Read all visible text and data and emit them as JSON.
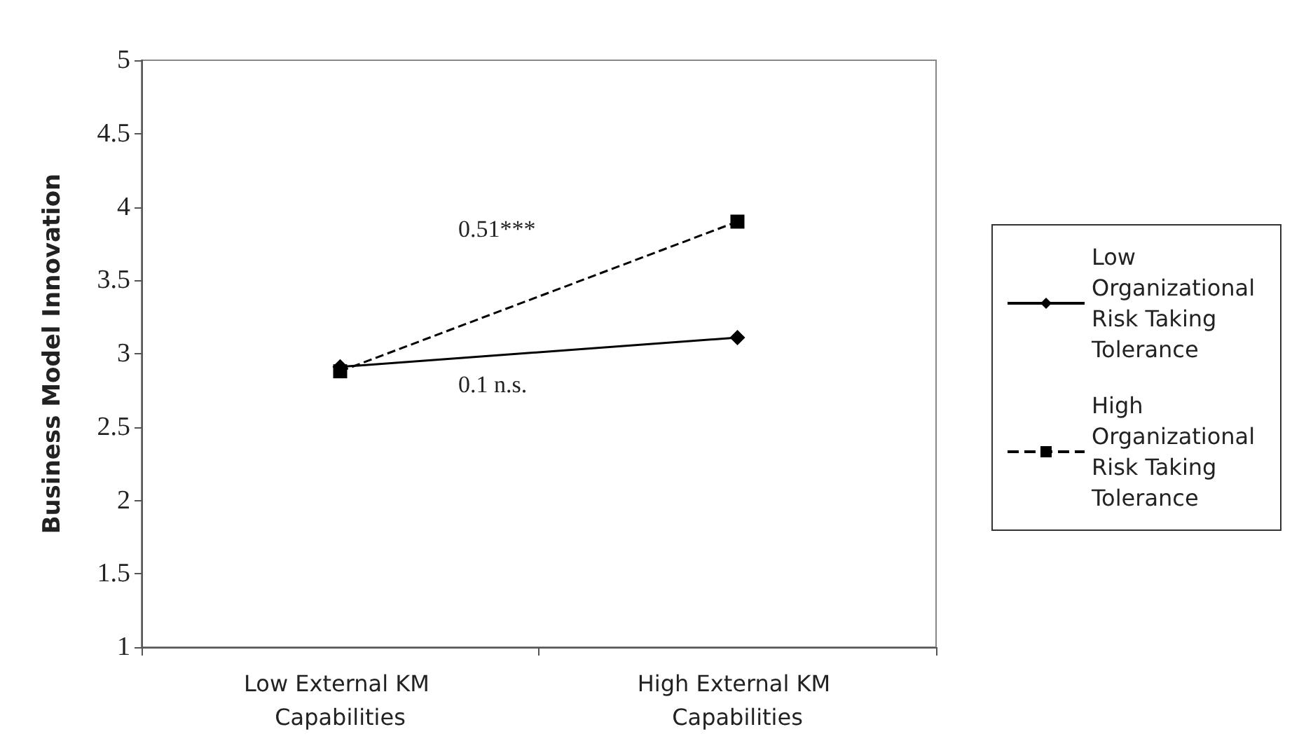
{
  "chart_data": {
    "type": "line",
    "ylabel": "Business Model Innovation",
    "categories": [
      "Low External KM Capabilities",
      "High External KM Capabilities"
    ],
    "series": [
      {
        "name": "Low Organizational Risk Taking Tolerance",
        "color": "#000000",
        "values": [
          2.91,
          3.11
        ],
        "marker": "diamond",
        "line_style": "solid"
      },
      {
        "name": "High Organizational Risk Taking Tolerance",
        "color": "#000000",
        "values": [
          2.88,
          3.9
        ],
        "marker": "square",
        "line_style": "dashed"
      }
    ],
    "ylim": [
      1,
      5
    ],
    "yticks": [
      1,
      1.5,
      2,
      2.5,
      3,
      3.5,
      4,
      4.5,
      5
    ],
    "grid": false,
    "legend": "right",
    "annotations": [
      "0.51***",
      "0.1 n.s."
    ]
  }
}
